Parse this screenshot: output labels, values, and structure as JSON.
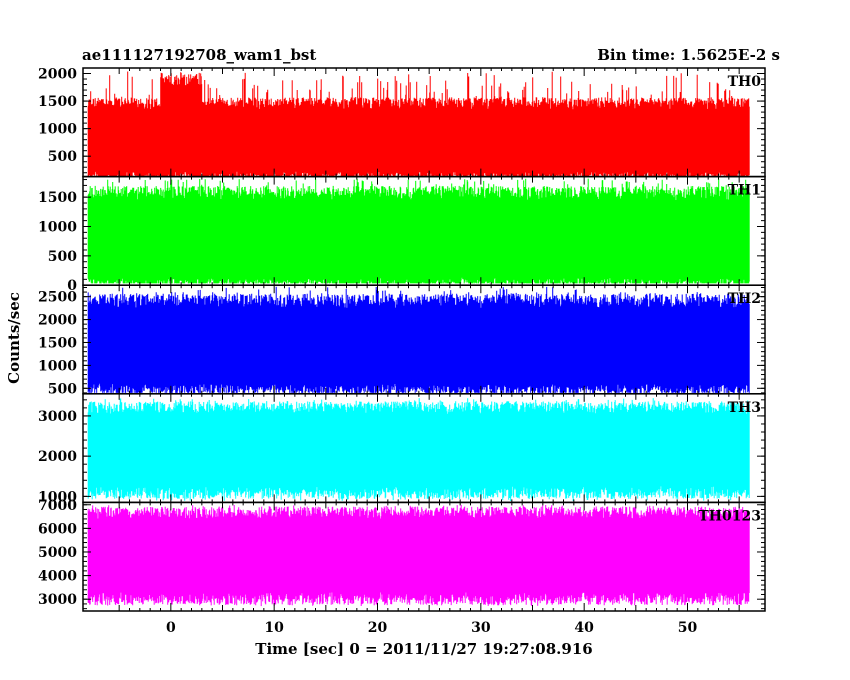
{
  "header": {
    "left_title": "ae111127192708_wam1_bst",
    "right_title": "Bin time: 1.5625E-2 s"
  },
  "chart_data": {
    "type": "line",
    "xlabel": "Time [sec] 0 = 2011/11/27 19:27:08.916",
    "ylabel": "Counts/sec",
    "xlim": [
      -8.5,
      57.5
    ],
    "x_data_range": [
      -8,
      56
    ],
    "x_ticks": [
      0,
      10,
      20,
      30,
      40,
      50
    ],
    "x_tick_labels": [
      "0",
      "10",
      "20",
      "30",
      "40",
      "50"
    ],
    "grid": false,
    "panels": [
      {
        "label": "TH0",
        "color": "#ff0000",
        "ylim": [
          130,
          2100
        ],
        "y_ticks": [
          500,
          1000,
          1500,
          2000
        ],
        "y_tick_labels": [
          "500",
          "1000",
          "1500",
          "2000"
        ],
        "mean": 730,
        "upper_env": 1350,
        "lower_env": 220,
        "max": 2050,
        "min": 130,
        "burst": {
          "x": [
            -1,
            3
          ],
          "extra": 380
        }
      },
      {
        "label": "TH1",
        "color": "#00ff00",
        "ylim": [
          0,
          1850
        ],
        "y_ticks": [
          0,
          500,
          1000,
          1500
        ],
        "y_tick_labels": [
          "0",
          "500",
          "1000",
          "1500"
        ],
        "mean": 760,
        "upper_env": 1450,
        "lower_env": 130,
        "max": 1820,
        "min": 30
      },
      {
        "label": "TH2",
        "color": "#0000ff",
        "ylim": [
          380,
          2750
        ],
        "y_ticks": [
          500,
          1000,
          1500,
          2000,
          2500
        ],
        "y_tick_labels": [
          "500",
          "1000",
          "1500",
          "2000",
          "2500"
        ],
        "mean": 1350,
        "upper_env": 2250,
        "lower_env": 600,
        "max": 2720,
        "min": 400
      },
      {
        "label": "TH3",
        "color": "#00ffff",
        "ylim": [
          850,
          3550
        ],
        "y_ticks": [
          1000,
          2000,
          3000
        ],
        "y_tick_labels": [
          "1000",
          "2000",
          "3000"
        ],
        "mean": 2150,
        "upper_env": 3050,
        "lower_env": 1250,
        "max": 3450,
        "min": 880
      },
      {
        "label": "TH0123",
        "color": "#ff00ff",
        "ylim": [
          2500,
          7100
        ],
        "y_ticks": [
          3000,
          4000,
          5000,
          6000,
          7000
        ],
        "y_tick_labels": [
          "3000",
          "4000",
          "5000",
          "6000",
          "7000"
        ],
        "mean": 4900,
        "upper_env": 6400,
        "lower_env": 3300,
        "max": 7000,
        "min": 2700
      }
    ]
  }
}
